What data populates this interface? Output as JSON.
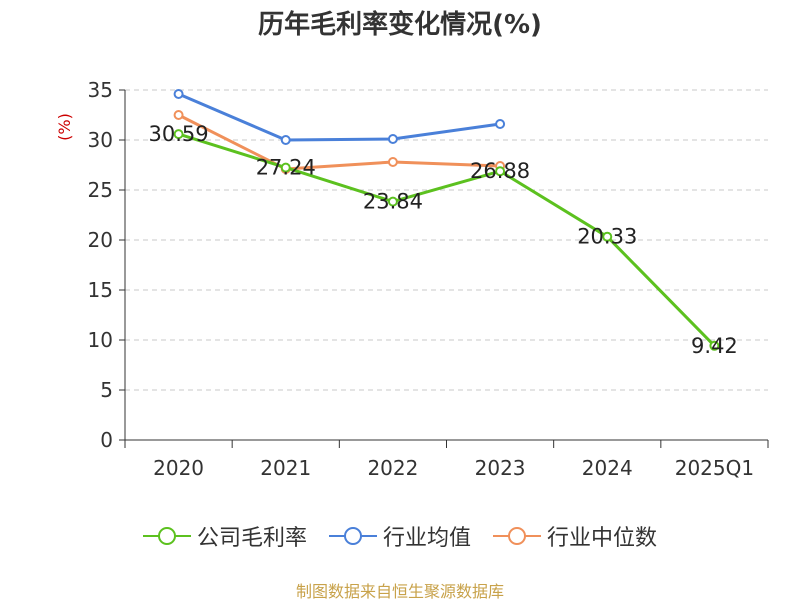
{
  "chart_data": {
    "type": "line",
    "title": "历年毛利率变化情况(%)",
    "ylabel": "(%)",
    "xlabel": "",
    "ylim": [
      0,
      35
    ],
    "yticks": [
      0,
      5,
      10,
      15,
      20,
      25,
      30,
      35
    ],
    "categories": [
      "2020",
      "2021",
      "2022",
      "2023",
      "2024",
      "2025Q1"
    ],
    "grid": true,
    "legend_position": "bottom",
    "series": [
      {
        "name": "公司毛利率",
        "color": "#5cc11f",
        "values": [
          30.59,
          27.24,
          23.84,
          26.88,
          20.33,
          9.42
        ],
        "labels": [
          "30.59",
          "27.24",
          "23.84",
          "26.88",
          "20.33",
          "9.42"
        ]
      },
      {
        "name": "行业均值",
        "color": "#4a80d9",
        "values": [
          34.6,
          30.0,
          30.1,
          31.6,
          null,
          null
        ]
      },
      {
        "name": "行业中位数",
        "color": "#f0905a",
        "values": [
          32.5,
          27.1,
          27.8,
          27.4,
          null,
          null
        ]
      }
    ]
  },
  "source_note": "制图数据来自恒生聚源数据库"
}
